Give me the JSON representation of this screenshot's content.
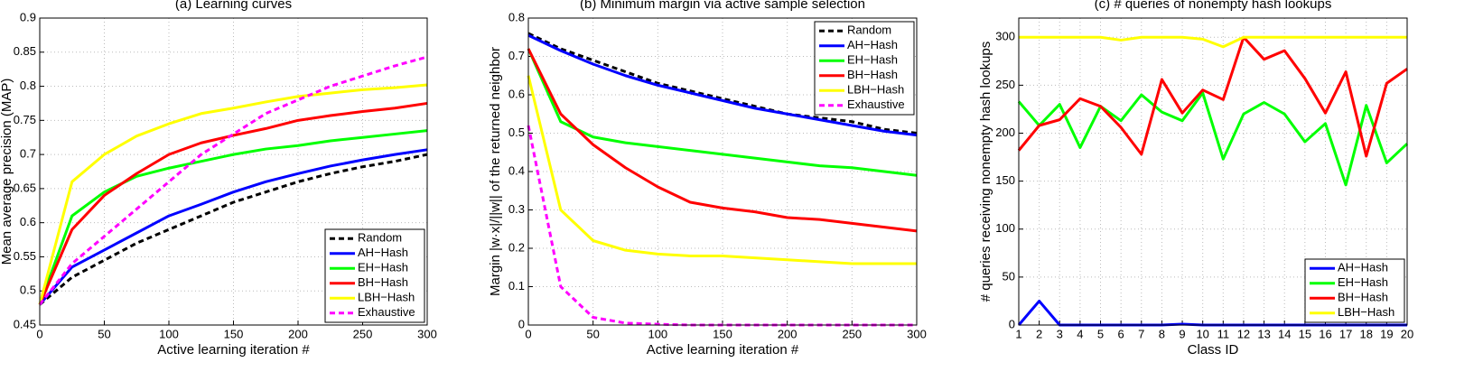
{
  "chart_data": [
    {
      "type": "line",
      "title": "(a) Learning curves",
      "xlabel": "Active learning iteration #",
      "ylabel": "Mean average precision (MAP)",
      "x": [
        0,
        25,
        50,
        75,
        100,
        125,
        150,
        175,
        200,
        225,
        250,
        275,
        300
      ],
      "series": [
        {
          "name": "Random",
          "color": "#000000",
          "linestyle": "dashed",
          "values": [
            0.48,
            0.52,
            0.545,
            0.57,
            0.59,
            0.61,
            0.63,
            0.645,
            0.66,
            0.672,
            0.682,
            0.69,
            0.7
          ]
        },
        {
          "name": "AH−Hash",
          "color": "#0000ff",
          "linestyle": "solid",
          "values": [
            0.48,
            0.535,
            0.56,
            0.585,
            0.61,
            0.627,
            0.645,
            0.66,
            0.672,
            0.683,
            0.692,
            0.7,
            0.707
          ]
        },
        {
          "name": "EH−Hash",
          "color": "#00ff00",
          "linestyle": "solid",
          "values": [
            0.48,
            0.61,
            0.645,
            0.668,
            0.68,
            0.69,
            0.7,
            0.708,
            0.713,
            0.72,
            0.725,
            0.73,
            0.735
          ]
        },
        {
          "name": "BH−Hash",
          "color": "#ff0000",
          "linestyle": "solid",
          "values": [
            0.48,
            0.59,
            0.64,
            0.672,
            0.7,
            0.717,
            0.728,
            0.738,
            0.75,
            0.757,
            0.763,
            0.768,
            0.775
          ]
        },
        {
          "name": "LBH−Hash",
          "color": "#ffff00",
          "linestyle": "solid",
          "values": [
            0.48,
            0.66,
            0.7,
            0.727,
            0.745,
            0.76,
            0.768,
            0.777,
            0.785,
            0.79,
            0.795,
            0.798,
            0.802
          ]
        },
        {
          "name": "Exhaustive",
          "color": "#ff00ff",
          "linestyle": "dashed",
          "values": [
            0.48,
            0.54,
            0.58,
            0.62,
            0.66,
            0.7,
            0.73,
            0.76,
            0.78,
            0.8,
            0.815,
            0.83,
            0.843
          ]
        }
      ],
      "xlim": [
        0,
        300
      ],
      "ylim": [
        0.45,
        0.9
      ],
      "xticks": [
        0,
        50,
        100,
        150,
        200,
        250,
        300
      ],
      "yticks": [
        0.45,
        0.5,
        0.55,
        0.6,
        0.65,
        0.7,
        0.75,
        0.8,
        0.85,
        0.9
      ],
      "grid": true,
      "legend": "lower right"
    },
    {
      "type": "line",
      "title": "(b) Minimum margin via active sample selection",
      "xlabel": "Active learning iteration #",
      "ylabel": "Margin |w·x|/||w|| of the returned neighbor",
      "x": [
        0,
        25,
        50,
        75,
        100,
        125,
        150,
        175,
        200,
        225,
        250,
        275,
        300
      ],
      "series": [
        {
          "name": "Random",
          "color": "#000000",
          "linestyle": "dashed",
          "values": [
            0.76,
            0.72,
            0.69,
            0.66,
            0.63,
            0.61,
            0.59,
            0.57,
            0.55,
            0.54,
            0.53,
            0.51,
            0.5
          ]
        },
        {
          "name": "AH−Hash",
          "color": "#0000ff",
          "linestyle": "solid",
          "values": [
            0.755,
            0.715,
            0.68,
            0.65,
            0.625,
            0.605,
            0.585,
            0.565,
            0.55,
            0.535,
            0.52,
            0.505,
            0.495
          ]
        },
        {
          "name": "EH−Hash",
          "color": "#00ff00",
          "linestyle": "solid",
          "values": [
            0.72,
            0.53,
            0.49,
            0.475,
            0.465,
            0.455,
            0.445,
            0.435,
            0.425,
            0.415,
            0.41,
            0.4,
            0.39
          ]
        },
        {
          "name": "BH−Hash",
          "color": "#ff0000",
          "linestyle": "solid",
          "values": [
            0.72,
            0.55,
            0.47,
            0.41,
            0.36,
            0.32,
            0.305,
            0.295,
            0.28,
            0.275,
            0.265,
            0.255,
            0.245
          ]
        },
        {
          "name": "LBH−Hash",
          "color": "#ffff00",
          "linestyle": "solid",
          "values": [
            0.65,
            0.3,
            0.22,
            0.195,
            0.185,
            0.18,
            0.18,
            0.175,
            0.17,
            0.165,
            0.16,
            0.16,
            0.16
          ]
        },
        {
          "name": "Exhaustive",
          "color": "#ff00ff",
          "linestyle": "dashed",
          "values": [
            0.52,
            0.1,
            0.02,
            0.005,
            0.002,
            0,
            0,
            0,
            0,
            0,
            0,
            0,
            0
          ]
        }
      ],
      "xlim": [
        0,
        300
      ],
      "ylim": [
        0,
        0.8
      ],
      "xticks": [
        0,
        50,
        100,
        150,
        200,
        250,
        300
      ],
      "yticks": [
        0,
        0.1,
        0.2,
        0.3,
        0.4,
        0.5,
        0.6,
        0.7,
        0.8
      ],
      "grid": true,
      "legend": "upper right"
    },
    {
      "type": "line",
      "title": "(c) # queries of nonempty hash lookups",
      "xlabel": "Class ID",
      "ylabel": "# queries receiving nonempty hash lookups",
      "x": [
        1,
        2,
        3,
        4,
        5,
        6,
        7,
        8,
        9,
        10,
        11,
        12,
        13,
        14,
        15,
        16,
        17,
        18,
        19,
        20
      ],
      "series": [
        {
          "name": "AH−Hash",
          "color": "#0000ff",
          "linestyle": "solid",
          "values": [
            0,
            25,
            0,
            0,
            0,
            0,
            0,
            0,
            1,
            0,
            0,
            0,
            0,
            0,
            0,
            0,
            0,
            0,
            0,
            0
          ]
        },
        {
          "name": "EH−Hash",
          "color": "#00ff00",
          "linestyle": "solid",
          "values": [
            233,
            208,
            230,
            185,
            228,
            213,
            240,
            222,
            213,
            242,
            173,
            220,
            232,
            220,
            191,
            210,
            146,
            229,
            169,
            189
          ]
        },
        {
          "name": "BH−Hash",
          "color": "#ff0000",
          "linestyle": "solid",
          "values": [
            182,
            208,
            214,
            236,
            228,
            206,
            178,
            256,
            221,
            245,
            235,
            300,
            277,
            286,
            257,
            221,
            264,
            176,
            252,
            267
          ]
        },
        {
          "name": "LBH−Hash",
          "color": "#ffff00",
          "linestyle": "solid",
          "values": [
            300,
            300,
            300,
            300,
            300,
            297,
            300,
            300,
            300,
            298,
            290,
            300,
            300,
            300,
            300,
            300,
            300,
            300,
            300,
            300
          ]
        }
      ],
      "xlim": [
        1,
        20
      ],
      "ylim": [
        0,
        320
      ],
      "xticks": [
        1,
        2,
        3,
        4,
        5,
        6,
        7,
        8,
        9,
        10,
        11,
        12,
        13,
        14,
        15,
        16,
        17,
        18,
        19,
        20
      ],
      "yticks": [
        0,
        50,
        100,
        150,
        200,
        250,
        300
      ],
      "grid": true,
      "legend": "lower right"
    }
  ]
}
